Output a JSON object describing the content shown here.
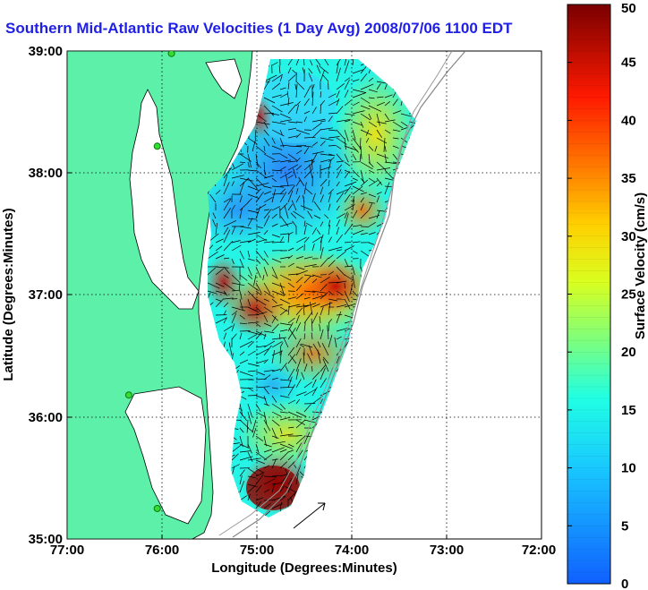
{
  "title": "Southern Mid-Atlantic Raw Velocities (1 Day Avg) 2008/07/06 1100 EDT",
  "xlabel": "Longitude (Degrees:Minutes)",
  "ylabel": "Latitude (Degrees:Minutes)",
  "colorbar_label": "Surface Velocity (cm/s)",
  "x_ticks": [
    "77:00",
    "76:00",
    "75:00",
    "74:00",
    "73:00",
    "72:00"
  ],
  "y_ticks": [
    "39:00",
    "38:00",
    "37:00",
    "36:00",
    "35:00"
  ],
  "colorbar_ticks": [
    "0",
    "5",
    "10",
    "15",
    "20",
    "25",
    "30",
    "35",
    "40",
    "45",
    "50"
  ],
  "colors": {
    "land": "#5cf0a8",
    "title": "#1f1fe8",
    "marker": "#33dd33"
  },
  "chart_data": {
    "type": "heatmap",
    "title": "Southern Mid-Atlantic Raw Velocities (1 Day Avg) 2008/07/06 1100 EDT",
    "xlabel": "Longitude (Degrees:Minutes)",
    "ylabel": "Latitude (Degrees:Minutes)",
    "xlim": [
      -77,
      -72
    ],
    "ylim": [
      35,
      39
    ],
    "colorbar": {
      "label": "Surface Velocity (cm/s)",
      "min": 0,
      "max": 50
    },
    "grid": true,
    "velocity_regions": [
      {
        "lon": -74.7,
        "lat": 38.25,
        "speed": 5
      },
      {
        "lon": -75.5,
        "lat": 37.6,
        "speed": 8
      },
      {
        "lon": -74.2,
        "lat": 38.6,
        "speed": 25
      },
      {
        "lon": -73.7,
        "lat": 38.4,
        "speed": 30
      },
      {
        "lon": -75.8,
        "lat": 38.5,
        "speed": 40
      },
      {
        "lon": -74.5,
        "lat": 36.8,
        "speed": 38
      },
      {
        "lon": -75.1,
        "lat": 37.1,
        "speed": 35
      },
      {
        "lon": -74.7,
        "lat": 36.2,
        "speed": 15
      },
      {
        "lon": -74.6,
        "lat": 35.4,
        "speed": 48
      },
      {
        "lon": -75.3,
        "lat": 36.0,
        "speed": 12
      }
    ],
    "radar_sites": [
      {
        "lon": -75.9,
        "lat": 38.98
      },
      {
        "lon": -76.05,
        "lat": 38.22
      },
      {
        "lon": -76.35,
        "lat": 36.18
      },
      {
        "lon": -76.05,
        "lat": 35.25
      }
    ]
  }
}
